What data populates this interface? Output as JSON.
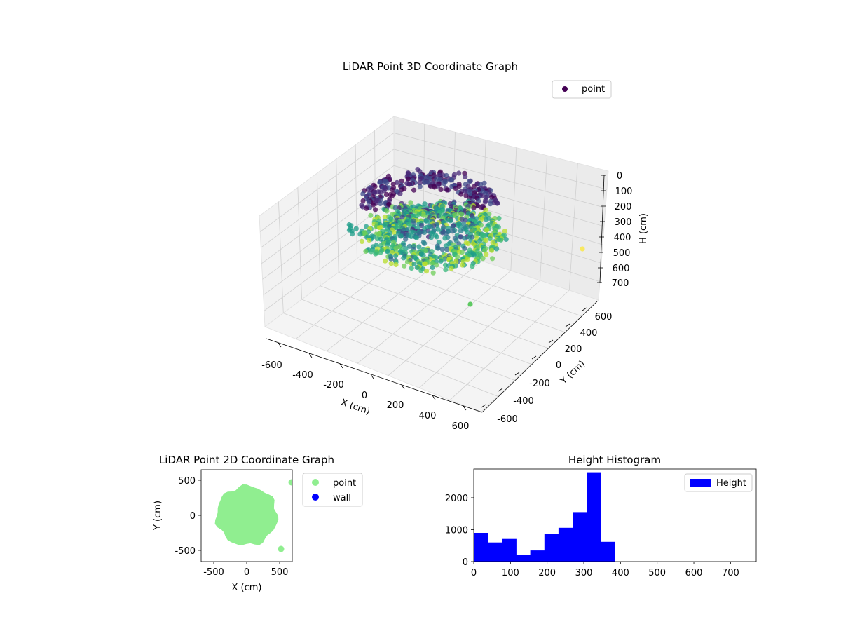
{
  "chart_data": [
    {
      "type": "scatter3d",
      "title": "LiDAR Point 3D Coordinate Graph",
      "xlabel": "X (cm)",
      "ylabel": "Y (cm)",
      "zlabel": "H (cm)",
      "xlim": [
        -700,
        700
      ],
      "ylim": [
        -700,
        700
      ],
      "zlim": [
        0,
        760
      ],
      "z_inverted": true,
      "x_ticks": [
        -600,
        -400,
        -200,
        0,
        200,
        400,
        600
      ],
      "y_ticks": [
        -600,
        -400,
        -200,
        0,
        200,
        400,
        600
      ],
      "z_ticks": [
        0,
        100,
        200,
        300,
        400,
        500,
        600,
        700
      ],
      "colormap": "viridis",
      "legend": {
        "placement": "top-right",
        "entries": [
          "point"
        ]
      },
      "grid": true,
      "outliers": [
        {
          "x": 650,
          "y": 500,
          "h": 500
        },
        {
          "x": 500,
          "y": -500,
          "h": 0
        }
      ]
    },
    {
      "type": "scatter",
      "title": "LiDAR Point 2D Coordinate Graph",
      "xlabel": "X (cm)",
      "ylabel": "Y (cm)",
      "xlim": [
        -700,
        700
      ],
      "ylim": [
        -650,
        650
      ],
      "x_ticks": [
        -500,
        0,
        500
      ],
      "y_ticks": [
        -500,
        0,
        500
      ],
      "legend": {
        "placement": "outside-right",
        "entries": [
          {
            "name": "point",
            "color": "#90ee90"
          },
          {
            "name": "wall",
            "color": "#0000ff"
          }
        ]
      },
      "region": {
        "center": [
          0,
          0
        ],
        "radius_x": 470,
        "radius_y": 420
      },
      "outliers": [
        {
          "x": 650,
          "y": 490
        },
        {
          "x": 500,
          "y": -490
        }
      ]
    },
    {
      "type": "bar",
      "title": "Height Histogram",
      "series_name": "Height",
      "color": "#0000ff",
      "xlim": [
        0,
        770
      ],
      "ylim": [
        0,
        2900
      ],
      "x_ticks": [
        0,
        100,
        200,
        300,
        400,
        500,
        600,
        700
      ],
      "y_ticks": [
        0,
        1000,
        2000
      ],
      "bin_width": 38.5,
      "bin_starts": [
        0,
        38.5,
        77,
        115.5,
        154,
        192.5,
        231,
        269.5,
        308,
        346.5
      ],
      "values": [
        900,
        600,
        710,
        210,
        350,
        860,
        1060,
        1550,
        2800,
        620
      ],
      "legend": {
        "placement": "top-right",
        "entries": [
          "Height"
        ]
      }
    }
  ]
}
